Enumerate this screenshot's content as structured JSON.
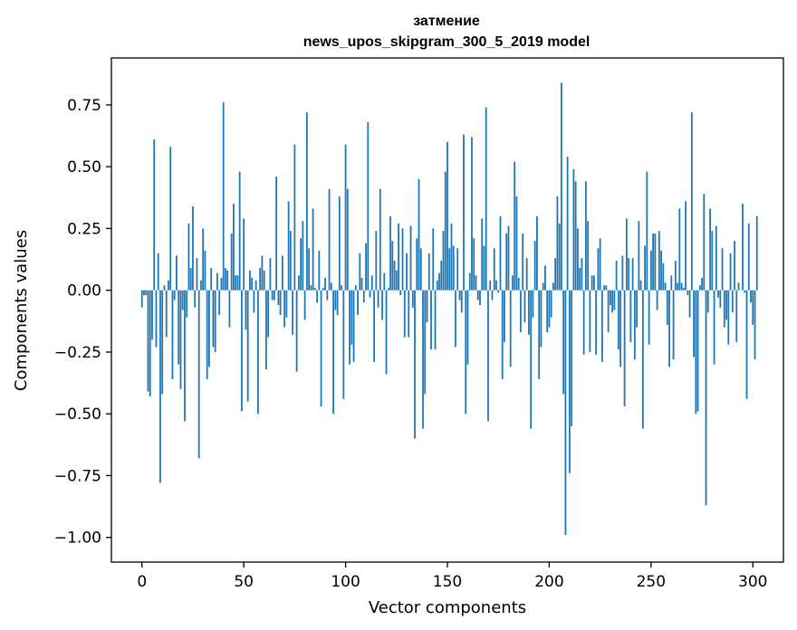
{
  "chart_data": {
    "type": "bar",
    "title": "затмение",
    "subtitle": "news_upos_skipgram_300_5_2019 model",
    "xlabel": "Vector components",
    "ylabel": "Components values",
    "xlim": [
      -15,
      315
    ],
    "ylim": [
      -1.1,
      0.94
    ],
    "xticks": [
      0,
      50,
      100,
      150,
      200,
      250,
      300
    ],
    "yticks": [
      -1.0,
      -0.75,
      -0.5,
      -0.25,
      0.0,
      0.25,
      0.5,
      0.75
    ],
    "ytick_labels": [
      "−1.00",
      "−0.75",
      "−0.50",
      "−0.25",
      "0.00",
      "0.25",
      "0.50",
      "0.75"
    ],
    "grid": false,
    "legend": "none",
    "bar_color": "#1f77b4",
    "values": [
      -0.07,
      -0.02,
      -0.02,
      -0.41,
      -0.43,
      -0.2,
      0.61,
      -0.23,
      0.15,
      -0.78,
      -0.42,
      0.02,
      -0.19,
      0.04,
      0.58,
      -0.36,
      -0.04,
      0.14,
      -0.3,
      -0.4,
      -0.08,
      -0.53,
      -0.11,
      0.27,
      0.09,
      0.34,
      -0.07,
      0.13,
      -0.68,
      0.04,
      0.25,
      0.16,
      -0.36,
      -0.31,
      0.09,
      -0.23,
      -0.25,
      0.07,
      -0.1,
      0.05,
      0.76,
      0.09,
      0.08,
      -0.15,
      0.23,
      0.35,
      0.06,
      0.06,
      0.48,
      -0.49,
      0.29,
      -0.16,
      -0.45,
      0.08,
      0.05,
      -0.09,
      0.04,
      -0.5,
      0.09,
      0.14,
      0.08,
      -0.32,
      -0.19,
      0.13,
      -0.04,
      -0.04,
      0.46,
      -0.06,
      -0.1,
      0.14,
      -0.15,
      -0.11,
      0.36,
      0.24,
      -0.18,
      0.59,
      -0.33,
      0.06,
      0.21,
      0.28,
      -0.12,
      0.72,
      0.17,
      0.02,
      0.33,
      0.01,
      -0.05,
      0.16,
      -0.47,
      0.01,
      0.05,
      -0.04,
      0.41,
      0.03,
      -0.5,
      -0.08,
      -0.1,
      0.38,
      0.02,
      -0.44,
      0.59,
      0.41,
      -0.3,
      -0.22,
      -0.29,
      0.02,
      -0.1,
      0.15,
      0.05,
      -0.05,
      0.19,
      0.68,
      -0.03,
      0.06,
      -0.29,
      0.24,
      -0.07,
      0.41,
      -0.12,
      0.07,
      -0.34,
      0.01,
      0.3,
      0.2,
      0.12,
      0.08,
      0.27,
      -0.02,
      0.25,
      -0.19,
      0.15,
      -0.19,
      0.26,
      -0.07,
      -0.6,
      0.21,
      0.45,
      0.17,
      -0.56,
      -0.42,
      -0.13,
      0.15,
      -0.24,
      0.25,
      -0.24,
      0.04,
      0.07,
      0.12,
      0.24,
      0.48,
      0.6,
      0.17,
      0.27,
      0.18,
      -0.23,
      0.17,
      -0.04,
      -0.09,
      0.63,
      -0.5,
      -0.3,
      0.07,
      0.62,
      0.21,
      0.06,
      -0.04,
      -0.06,
      0.29,
      0.18,
      0.74,
      -0.53,
      0.04,
      -0.04,
      0.17,
      0.04,
      -0.01,
      0.3,
      -0.36,
      -0.21,
      0.23,
      0.26,
      -0.31,
      0.06,
      0.52,
      0.38,
      0.05,
      -0.17,
      0.23,
      -0.13,
      0.13,
      -0.18,
      -0.56,
      -0.11,
      0.2,
      0.3,
      -0.36,
      -0.23,
      0.03,
      0.1,
      -0.17,
      -0.15,
      -0.11,
      0.03,
      0.13,
      0.38,
      0.27,
      0.84,
      -0.42,
      -0.99,
      0.54,
      -0.74,
      -0.55,
      0.49,
      0.44,
      0.25,
      0.09,
      0.13,
      -0.26,
      0.44,
      0.28,
      -0.25,
      0.06,
      0.06,
      -0.26,
      0.17,
      0.21,
      -0.29,
      0.02,
      0.02,
      -0.17,
      -0.06,
      -0.09,
      -0.08,
      0.12,
      -0.24,
      -0.31,
      0.14,
      -0.47,
      0.29,
      0.13,
      -0.21,
      0.13,
      -0.28,
      -0.15,
      0.28,
      0.04,
      -0.56,
      0.18,
      0.48,
      -0.22,
      0.16,
      0.23,
      0.23,
      -0.08,
      0.24,
      0.16,
      0.11,
      0.03,
      -0.14,
      -0.31,
      0.06,
      -0.28,
      0.12,
      0.03,
      0.33,
      0.03,
      0.01,
      0.36,
      -0.02,
      -0.11,
      0.72,
      -0.27,
      -0.5,
      -0.49,
      0.02,
      0.05,
      0.39,
      -0.87,
      -0.09,
      0.33,
      0.24,
      -0.3,
      0.26,
      -0.03,
      -0.07,
      0.17,
      -0.15,
      -0.12,
      -0.22,
      0.15,
      -0.09,
      0.2,
      -0.21,
      0.03,
      0.0,
      0.35,
      -0.01,
      -0.44,
      0.27,
      -0.05,
      -0.14,
      -0.28,
      0.3
    ]
  }
}
